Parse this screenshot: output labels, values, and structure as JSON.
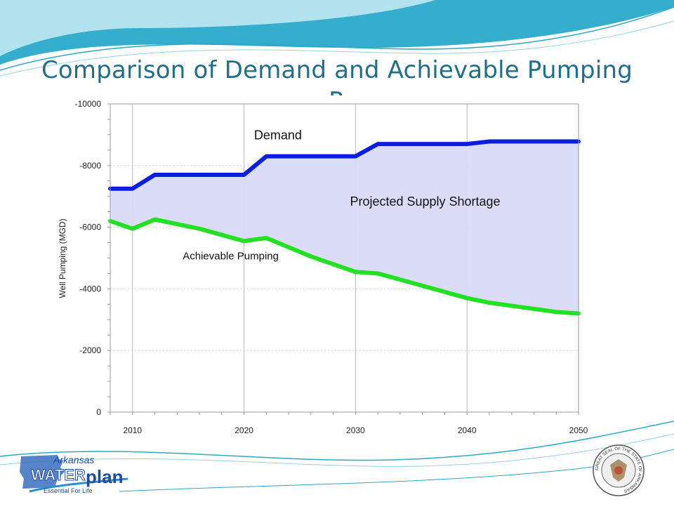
{
  "slide": {
    "title": "Comparison of Demand and Achievable Pumping",
    "title_clipped_fragment": "R",
    "logo": {
      "line1": "Arkansas",
      "line2a": "WATER",
      "line2b": "plan",
      "tagline": "Essential For Life"
    },
    "seal": {
      "text": "GREAT SEAL OF THE STATE OF ARKANSAS"
    },
    "colors": {
      "title": "#1f6f8b",
      "wave_dark": "#2aa9c9",
      "wave_light": "#bfe8f2"
    }
  },
  "chart_data": {
    "type": "area",
    "xlabel": "",
    "ylabel": "Well Pumping (MGD)",
    "xlim": [
      2008,
      2050
    ],
    "ylim": [
      0,
      -10000
    ],
    "x_ticks": [
      2010,
      2020,
      2030,
      2040,
      2050
    ],
    "y_ticks": [
      -10000,
      -8000,
      -6000,
      -4000,
      -2000,
      0
    ],
    "grid": true,
    "series": [
      {
        "name": "Demand",
        "color": "#0a1ee0",
        "x": [
          2008,
          2010,
          2012,
          2020,
          2022,
          2030,
          2032,
          2040,
          2042,
          2050
        ],
        "y": [
          -7250,
          -7250,
          -7700,
          -7700,
          -8300,
          -8300,
          -8700,
          -8700,
          -8780,
          -8780
        ]
      },
      {
        "name": "Achievable Pumping",
        "color": "#22e022",
        "x": [
          2008,
          2010,
          2012,
          2014,
          2016,
          2018,
          2020,
          2022,
          2024,
          2026,
          2028,
          2030,
          2032,
          2034,
          2036,
          2038,
          2040,
          2042,
          2044,
          2046,
          2048,
          2050
        ],
        "y": [
          -6200,
          -5950,
          -6250,
          -6100,
          -5950,
          -5750,
          -5550,
          -5650,
          -5350,
          -5050,
          -4800,
          -4550,
          -4500,
          -4300,
          -4100,
          -3900,
          -3700,
          -3550,
          -3450,
          -3350,
          -3250,
          -3200
        ]
      }
    ],
    "fill_between": {
      "name": "Projected Supply Shortage",
      "color": "#d8daf8"
    },
    "annotations": [
      {
        "text": "Demand",
        "x": 2020.9,
        "y": -8850
      },
      {
        "text": "Projected Supply Shortage",
        "x": 2029.5,
        "y": -6700
      },
      {
        "text": "Achievable Pumping",
        "x": 2014.5,
        "y": -4950
      }
    ]
  }
}
